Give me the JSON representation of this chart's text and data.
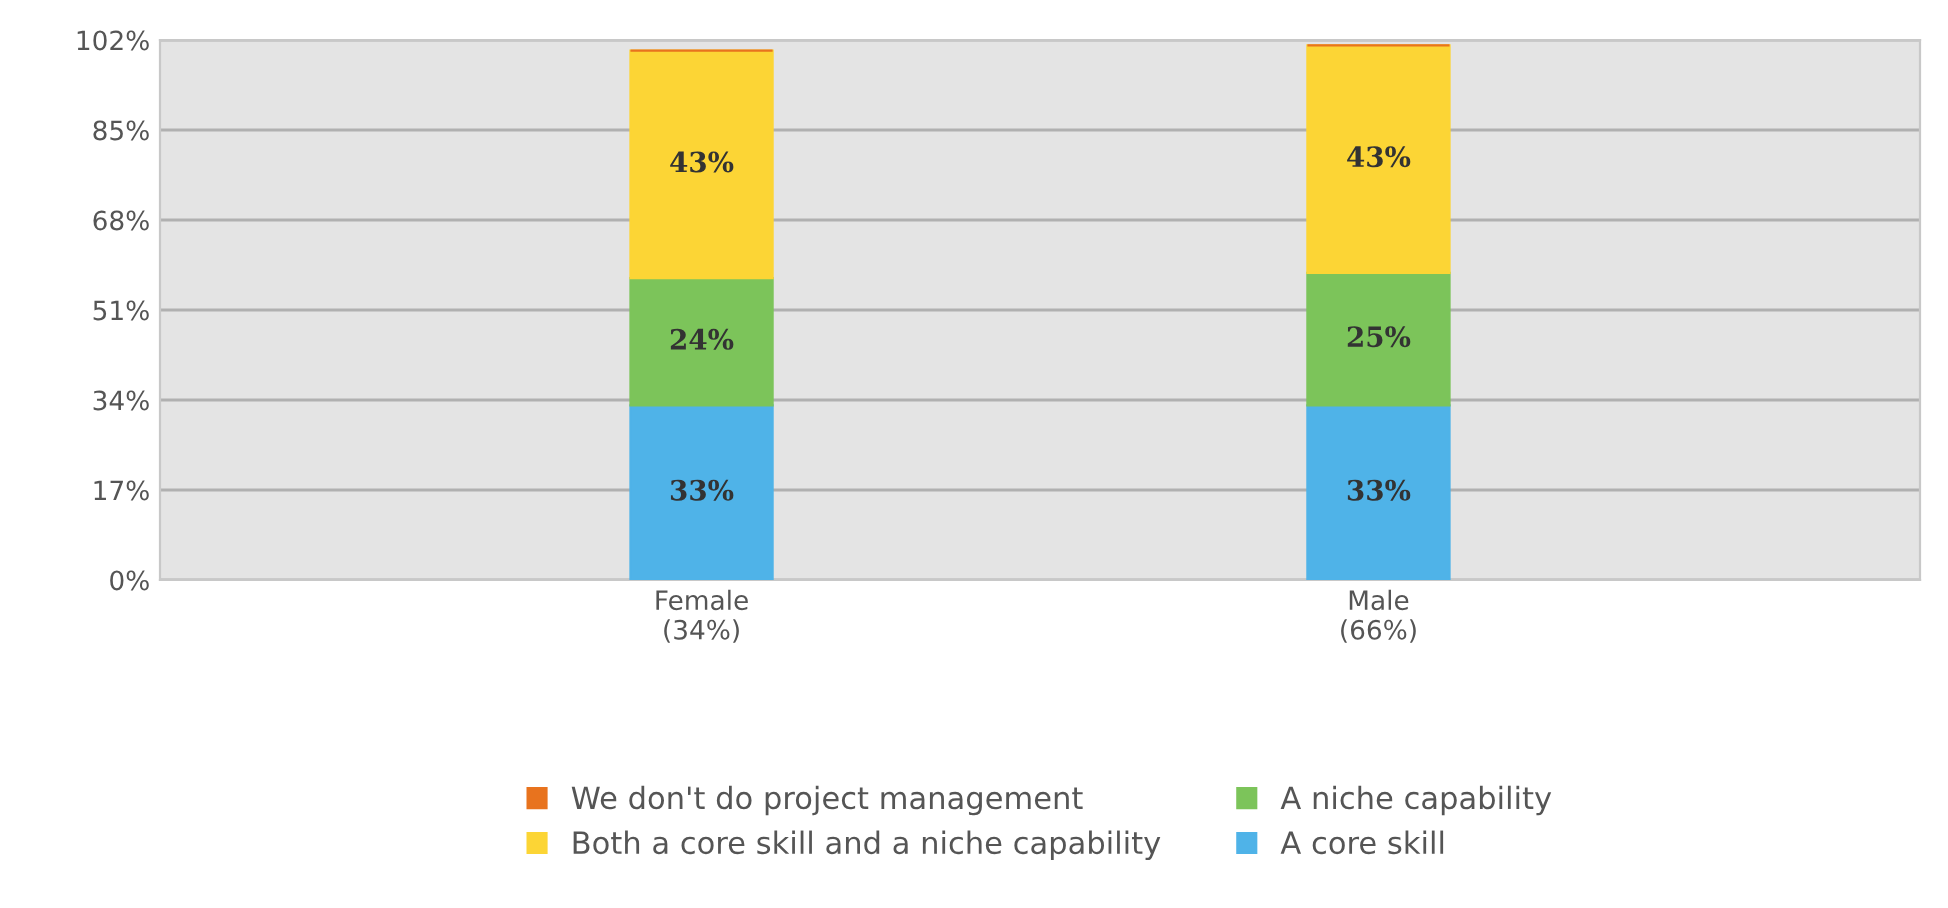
{
  "chart_data": {
    "type": "bar",
    "stacked": true,
    "categories": [
      "Female\n(34%)",
      "Male\n(66%)"
    ],
    "series": [
      {
        "name": "A core skill",
        "color": "#4fb3e8",
        "values": [
          33,
          33
        ],
        "value_labels": [
          "33%",
          "33%"
        ]
      },
      {
        "name": "A niche capability",
        "color": "#7cc45a",
        "values": [
          24,
          25
        ],
        "value_labels": [
          "24%",
          "25%"
        ]
      },
      {
        "name": "Both a core skill and a niche capability",
        "color": "#fcd535",
        "values": [
          43,
          43
        ],
        "value_labels": [
          "43%",
          "43%"
        ]
      },
      {
        "name": "We don't do project management",
        "color": "#e8731e",
        "values": [
          0,
          0
        ],
        "value_labels": [
          null,
          null
        ]
      }
    ],
    "ylim": [
      0,
      102
    ],
    "yticks": [
      {
        "value": 0,
        "label": "0%"
      },
      {
        "value": 17,
        "label": "17%"
      },
      {
        "value": 34,
        "label": "34%"
      },
      {
        "value": 51,
        "label": "51%"
      },
      {
        "value": 68,
        "label": "68%"
      },
      {
        "value": 85,
        "label": "85%"
      },
      {
        "value": 102,
        "label": "102%"
      }
    ],
    "grid": "y",
    "legend": "bottom"
  }
}
